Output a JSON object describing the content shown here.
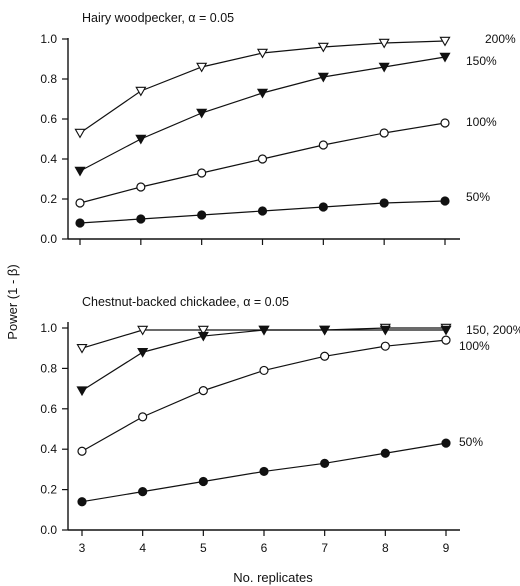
{
  "axis_text": {
    "ylabel": "Power (1 - β)",
    "xlabel": "No. replicates"
  },
  "chart_data": [
    {
      "type": "line",
      "title": "Hairy woodpecker, α = 0.05",
      "x": [
        3,
        4,
        5,
        6,
        7,
        8,
        9
      ],
      "xlim": [
        3,
        9
      ],
      "ylim": [
        0,
        1.0
      ],
      "yticks": [
        "0.0",
        "0.2",
        "0.4",
        "0.6",
        "0.8",
        "1.0"
      ],
      "series": [
        {
          "name": "200%",
          "marker": "open-triangle-down",
          "values": [
            0.53,
            0.74,
            0.86,
            0.93,
            0.96,
            0.98,
            0.99
          ]
        },
        {
          "name": "150%",
          "marker": "filled-triangle-down",
          "values": [
            0.34,
            0.5,
            0.63,
            0.73,
            0.81,
            0.86,
            0.91
          ]
        },
        {
          "name": "100%",
          "marker": "open-circle",
          "values": [
            0.18,
            0.26,
            0.33,
            0.4,
            0.47,
            0.53,
            0.58
          ]
        },
        {
          "name": "50%",
          "marker": "filled-circle",
          "values": [
            0.08,
            0.1,
            0.12,
            0.14,
            0.16,
            0.18,
            0.19
          ]
        }
      ],
      "series_labels": [
        "200%",
        "150%",
        "100%",
        "50%"
      ]
    },
    {
      "type": "line",
      "title": "Chestnut-backed chickadee, α = 0.05",
      "x": [
        3,
        4,
        5,
        6,
        7,
        8,
        9
      ],
      "xlim": [
        3,
        9
      ],
      "ylim": [
        0,
        1.0
      ],
      "yticks": [
        "0.0",
        "0.2",
        "0.4",
        "0.6",
        "0.8",
        "1.0"
      ],
      "xticks": [
        "3",
        "4",
        "5",
        "6",
        "7",
        "8",
        "9"
      ],
      "series": [
        {
          "name": "200%",
          "marker": "open-triangle-down",
          "values": [
            0.9,
            0.99,
            0.99,
            0.99,
            0.99,
            1.0,
            1.0
          ]
        },
        {
          "name": "150%",
          "marker": "filled-triangle-down",
          "values": [
            0.69,
            0.88,
            0.96,
            0.99,
            0.99,
            0.99,
            0.99
          ]
        },
        {
          "name": "100%",
          "marker": "open-circle",
          "values": [
            0.39,
            0.56,
            0.69,
            0.79,
            0.86,
            0.91,
            0.94
          ]
        },
        {
          "name": "50%",
          "marker": "filled-circle",
          "values": [
            0.14,
            0.19,
            0.24,
            0.29,
            0.33,
            0.38,
            0.43
          ]
        }
      ],
      "series_labels": [
        "150, 200%",
        "100%",
        "50%"
      ]
    }
  ]
}
